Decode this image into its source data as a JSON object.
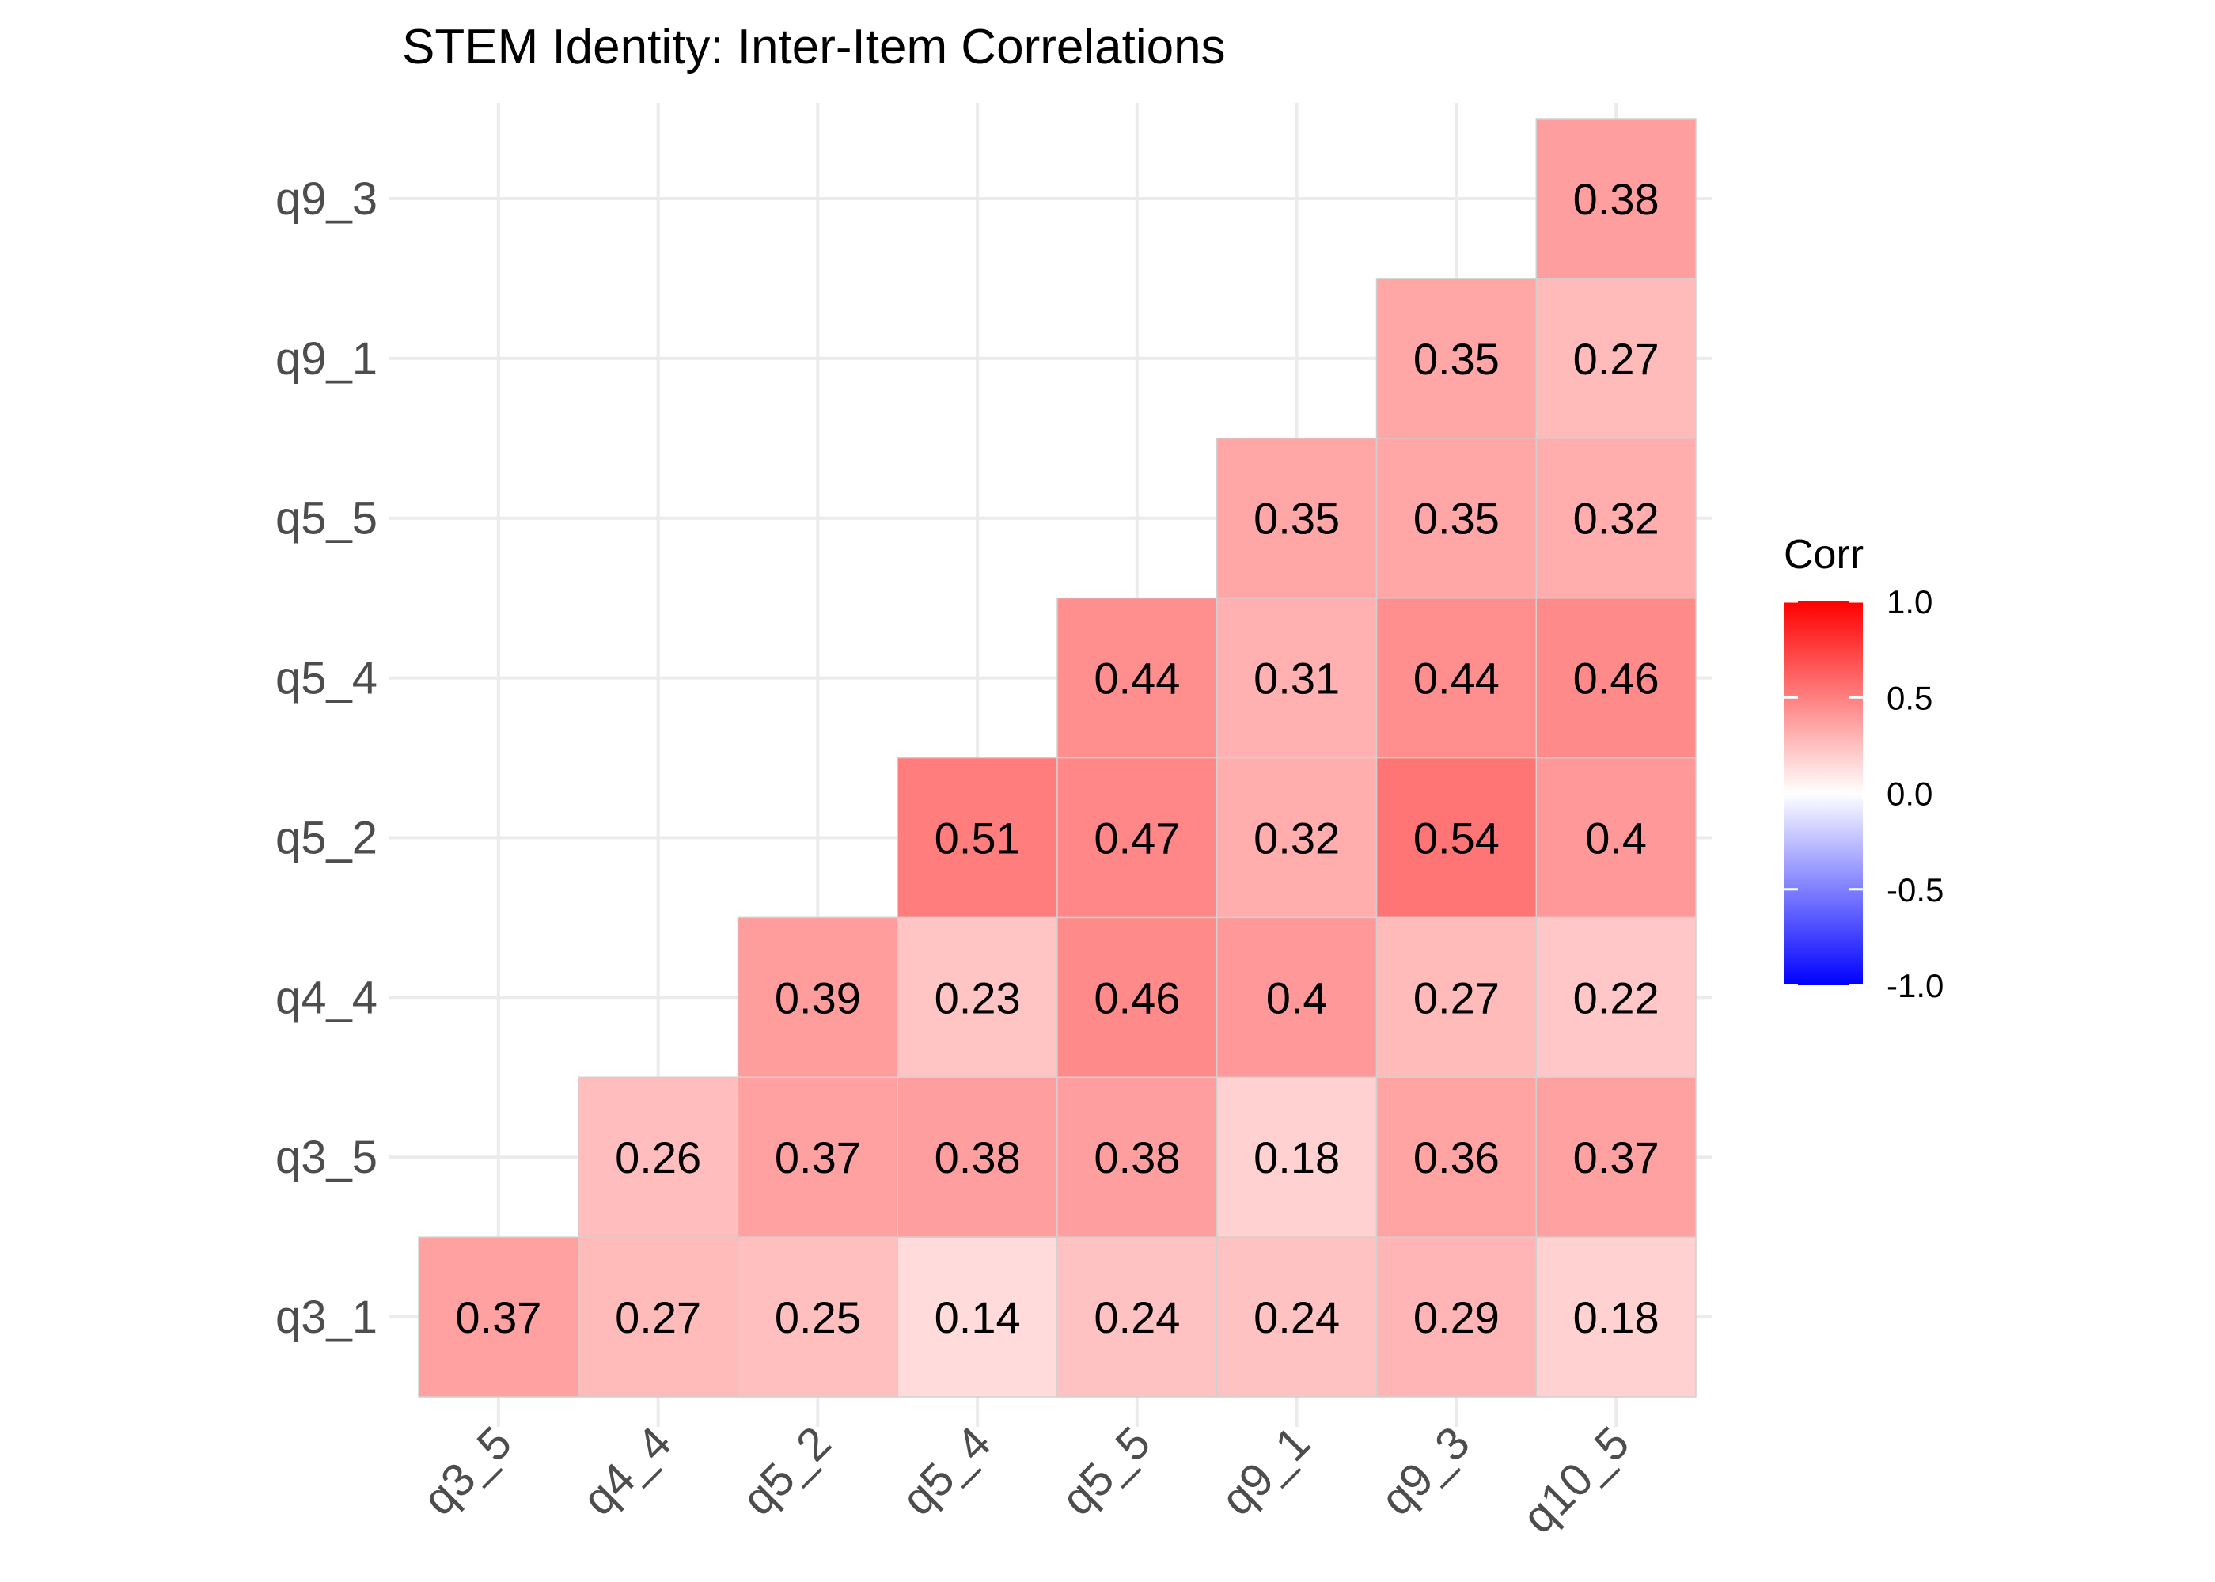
{
  "chart_data": {
    "type": "heatmap",
    "title": "STEM Identity: Inter-Item Correlations",
    "x_categories": [
      "q3_5",
      "q4_4",
      "q5_2",
      "q5_4",
      "q5_5",
      "q9_1",
      "q9_3",
      "q10_5"
    ],
    "y_categories": [
      "q3_1",
      "q3_5",
      "q4_4",
      "q5_2",
      "q5_4",
      "q5_5",
      "q9_1",
      "q9_3"
    ],
    "rows": [
      {
        "y": "q3_1",
        "values": [
          0.37,
          0.27,
          0.25,
          0.14,
          0.24,
          0.24,
          0.29,
          0.18
        ]
      },
      {
        "y": "q3_5",
        "values": [
          null,
          0.26,
          0.37,
          0.38,
          0.38,
          0.18,
          0.36,
          0.37
        ]
      },
      {
        "y": "q4_4",
        "values": [
          null,
          null,
          0.39,
          0.23,
          0.46,
          0.4,
          0.27,
          0.22
        ]
      },
      {
        "y": "q5_2",
        "values": [
          null,
          null,
          null,
          0.51,
          0.47,
          0.32,
          0.54,
          0.4
        ]
      },
      {
        "y": "q5_4",
        "values": [
          null,
          null,
          null,
          null,
          0.44,
          0.31,
          0.44,
          0.46
        ]
      },
      {
        "y": "q5_5",
        "values": [
          null,
          null,
          null,
          null,
          null,
          0.35,
          0.35,
          0.32
        ]
      },
      {
        "y": "q9_1",
        "values": [
          null,
          null,
          null,
          null,
          null,
          null,
          0.35,
          0.27
        ]
      },
      {
        "y": "q9_3",
        "values": [
          null,
          null,
          null,
          null,
          null,
          null,
          null,
          0.38
        ]
      }
    ],
    "legend": {
      "title": "Corr",
      "placement": "right",
      "range": [
        -1.0,
        1.0
      ],
      "ticks": [
        "1.0",
        "0.5",
        "0.0",
        "-0.5",
        "-1.0"
      ],
      "tick_values": [
        1.0,
        0.5,
        0.0,
        -0.5,
        -1.0
      ],
      "colors": {
        "low": "#0000ff",
        "mid": "#ffffff",
        "high": "#ff0000"
      }
    },
    "grid": true,
    "colors": {
      "tile_border": "#d0d0d0",
      "gridline": "#ebebeb"
    }
  }
}
